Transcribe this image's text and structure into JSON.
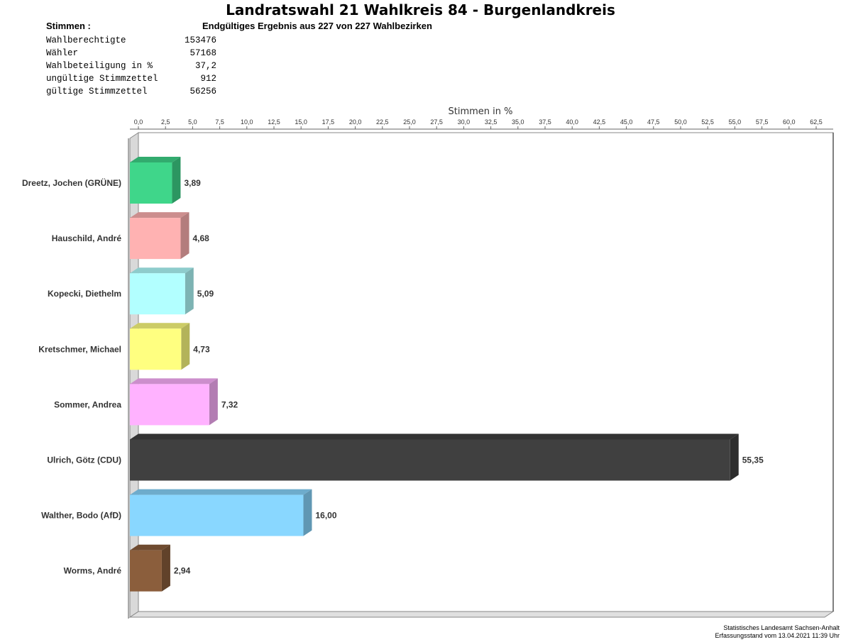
{
  "title": "Landratswahl 21 Wahlkreis 84 - Burgenlandkreis",
  "stimmen_label": "Stimmen  :",
  "subtitle": "Endgültiges Ergebnis aus 227 von 227 Wahlbezirken",
  "stats": [
    {
      "label": "Wahlberechtigte",
      "value": "153476"
    },
    {
      "label": "Wähler",
      "value": "57168"
    },
    {
      "label": "Wahlbeteiligung in %",
      "value": "37,2"
    },
    {
      "label": "ungültige Stimmzettel",
      "value": "912"
    },
    {
      "label": "gültige Stimmzettel",
      "value": "56256"
    }
  ],
  "footer": {
    "line1": "Statistisches Landesamt Sachsen-Anhalt",
    "line2": "Erfassungsstand vom 13.04.2021 11:39 Uhr"
  },
  "chart_data": {
    "type": "bar",
    "orientation": "horizontal",
    "xlabel": "Stimmen in %",
    "xlim": [
      0,
      62.5
    ],
    "ticks": [
      "0,0",
      "2,5",
      "5,0",
      "7,5",
      "10,0",
      "12,5",
      "15,0",
      "17,5",
      "20,0",
      "22,5",
      "25,0",
      "27,5",
      "30,0",
      "32,5",
      "35,0",
      "37,5",
      "40,0",
      "42,5",
      "45,0",
      "47,5",
      "50,0",
      "52,5",
      "55,0",
      "57,5",
      "60,0",
      "62,5"
    ],
    "categories": [
      "Dreetz, Jochen (GRÜNE)",
      "Hauschild, André",
      "Kopecki, Diethelm",
      "Kretschmer, Michael",
      "Sommer, Andrea",
      "Ulrich, Götz (CDU)",
      "Walther, Bodo (AfD)",
      "Worms, André"
    ],
    "values": [
      3.89,
      4.68,
      5.09,
      4.73,
      7.32,
      55.35,
      16.0,
      2.94
    ],
    "value_labels": [
      "3,89",
      "4,68",
      "5,09",
      "4,73",
      "7,32",
      "55,35",
      "16,00",
      "2,94"
    ],
    "colors": [
      "#3fd68a",
      "#ffb2b2",
      "#b2ffff",
      "#ffff80",
      "#ffb2ff",
      "#404040",
      "#89d7ff",
      "#8b5e3c"
    ],
    "grid": false
  }
}
